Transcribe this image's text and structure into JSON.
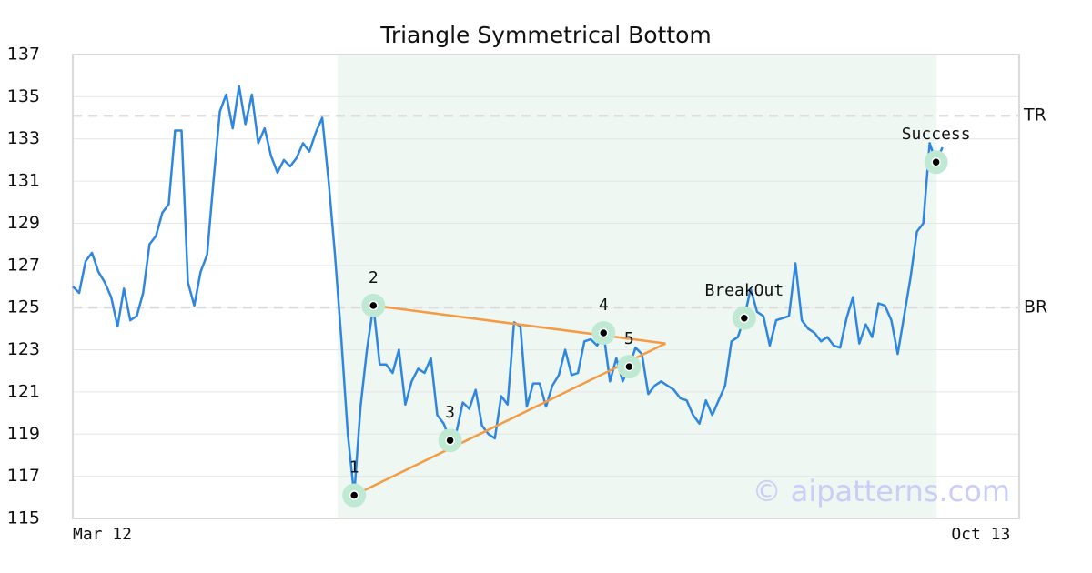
{
  "chart_data": {
    "type": "line",
    "title": "Triangle Symmetrical Bottom",
    "categories": [
      "Mar 12",
      null,
      null,
      null,
      null,
      null,
      null,
      null,
      null,
      null,
      null,
      null,
      null,
      null,
      null,
      null,
      null,
      null,
      null,
      null,
      null,
      null,
      null,
      null,
      null,
      null,
      null,
      null,
      null,
      null,
      null,
      null,
      null,
      null,
      null,
      null,
      null,
      null,
      null,
      null,
      null,
      null,
      null,
      null,
      null,
      null,
      null,
      null,
      null,
      null,
      null,
      null,
      null,
      null,
      null,
      null,
      null,
      null,
      null,
      null,
      null,
      null,
      null,
      null,
      null,
      null,
      null,
      null,
      null,
      null,
      null,
      null,
      null,
      null,
      null,
      null,
      null,
      null,
      null,
      null,
      null,
      null,
      null,
      null,
      null,
      null,
      null,
      null,
      null,
      null,
      null,
      null,
      null,
      null,
      null,
      null,
      null,
      null,
      null,
      null,
      null,
      null,
      null,
      null,
      null,
      null,
      null,
      null,
      null,
      null,
      null,
      null,
      null,
      null,
      null,
      null,
      null,
      null,
      null,
      null,
      null,
      null,
      null,
      null,
      null,
      null,
      null,
      null,
      null,
      null,
      null,
      null,
      null,
      null,
      null,
      null,
      null,
      null,
      null,
      null,
      null,
      null,
      "Oct 13",
      null,
      null,
      null,
      null,
      null,
      null
    ],
    "values": [
      126.0,
      125.7,
      127.2,
      127.6,
      126.7,
      126.2,
      125.5,
      124.1,
      125.9,
      124.4,
      124.6,
      125.7,
      128.0,
      128.4,
      129.5,
      129.9,
      133.4,
      133.4,
      126.2,
      125.1,
      126.7,
      127.5,
      131.0,
      134.3,
      135.1,
      133.5,
      135.5,
      133.7,
      135.1,
      132.8,
      133.5,
      132.2,
      131.4,
      132.0,
      131.7,
      132.1,
      132.8,
      132.4,
      133.3,
      134.0,
      131.0,
      127.5,
      123.5,
      119.0,
      116.1,
      120.3,
      123.0,
      125.1,
      122.3,
      122.3,
      121.9,
      123.0,
      120.4,
      121.5,
      122.1,
      121.9,
      122.6,
      119.9,
      119.5,
      118.7,
      119.1,
      120.5,
      120.2,
      121.1,
      119.4,
      119.0,
      118.8,
      120.8,
      120.4,
      124.3,
      124.1,
      120.3,
      121.4,
      121.4,
      120.3,
      121.3,
      121.8,
      123.0,
      121.8,
      121.9,
      123.4,
      123.5,
      123.2,
      123.8,
      121.5,
      122.6,
      121.5,
      122.2,
      123.1,
      122.8,
      120.9,
      121.3,
      121.5,
      121.3,
      121.1,
      120.7,
      120.6,
      119.9,
      119.5,
      120.6,
      119.9,
      120.6,
      121.3,
      123.4,
      123.6,
      124.5,
      125.9,
      124.8,
      124.6,
      123.2,
      124.4,
      124.5,
      124.6,
      127.1,
      124.4,
      124.0,
      123.8,
      123.4,
      123.6,
      123.2,
      123.1,
      124.5,
      125.5,
      123.3,
      124.2,
      123.6,
      125.2,
      125.1,
      124.4,
      122.8,
      124.6,
      126.4,
      128.6,
      129.0,
      132.8,
      131.9,
      132.6,
      null,
      null,
      null,
      null,
      null,
      null,
      null,
      null,
      null,
      null,
      null,
      null
    ],
    "color": "#2e86de",
    "ylim": [
      115,
      137
    ],
    "yticks": [
      115,
      117,
      119,
      121,
      123,
      125,
      127,
      129,
      131,
      133,
      135,
      137
    ],
    "grid": true,
    "levels": [
      {
        "label": "TR",
        "value": 134.1
      },
      {
        "label": "BR",
        "value": 125.0
      }
    ],
    "highlight": [
      41.4,
      135.1
    ],
    "triangle": [
      {
        "from": [
          47,
          125.1
        ],
        "to": [
          92.7,
          123.3
        ]
      },
      {
        "from": [
          44,
          116.1
        ],
        "to": [
          92.7,
          123.3
        ]
      }
    ],
    "markers": [
      {
        "label": "1",
        "index": 44,
        "value": 116.1
      },
      {
        "label": "2",
        "index": 47,
        "value": 125.1
      },
      {
        "label": "3",
        "index": 59,
        "value": 118.7
      },
      {
        "label": "4",
        "index": 83,
        "value": 123.8
      },
      {
        "label": "5",
        "index": 87,
        "value": 122.2
      },
      {
        "label": "BreakOut",
        "index": 105,
        "value": 124.5
      },
      {
        "label": "Success",
        "index": 135,
        "value": 131.9
      }
    ],
    "watermark": "© aipatterns.com"
  }
}
